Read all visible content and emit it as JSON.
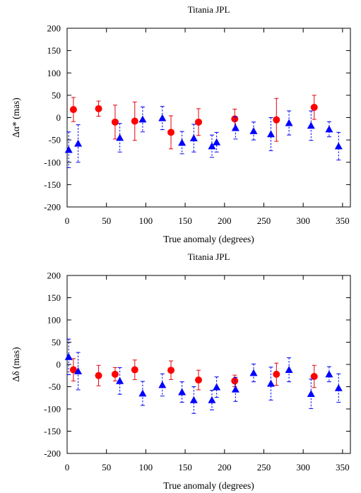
{
  "colors": {
    "red_series": "#e8000b",
    "red_marker": "#ff0000",
    "blue_series": "#0000ee",
    "blue_marker": "#0000ff",
    "axis": "#000000"
  },
  "chart_data": [
    {
      "type": "scatter",
      "title": "Titania JPL",
      "xlabel": "True anomaly (degrees)",
      "ylabel": "Δα* (mas)",
      "xlim": [
        0,
        360
      ],
      "ylim": [
        -200,
        200
      ],
      "xticks": [
        "0",
        "50",
        "100",
        "150",
        "200",
        "250",
        "300",
        "350"
      ],
      "yticks": [
        "200",
        "150",
        "100",
        "50",
        "0",
        "-50",
        "-100",
        "-150",
        "-200"
      ],
      "grid": false,
      "series": [
        {
          "marker": "circle",
          "errorbar": "solid",
          "color": "red",
          "points": [
            {
              "x": 8,
              "y": 18,
              "err": 27
            },
            {
              "x": 40,
              "y": 20,
              "err": 17
            },
            {
              "x": 61,
              "y": -10,
              "err": 38
            },
            {
              "x": 86,
              "y": -8,
              "err": 43
            },
            {
              "x": 132,
              "y": -33,
              "err": 37
            },
            {
              "x": 167,
              "y": -10,
              "err": 30
            },
            {
              "x": 213,
              "y": -3,
              "err": 22
            },
            {
              "x": 266,
              "y": -5,
              "err": 48
            },
            {
              "x": 314,
              "y": 23,
              "err": 27
            }
          ]
        },
        {
          "marker": "triangle",
          "errorbar": "dashed",
          "color": "blue",
          "points": [
            {
              "x": 2,
              "y": -72,
              "err": 40
            },
            {
              "x": 14,
              "y": -58,
              "err": 42
            },
            {
              "x": 67,
              "y": -45,
              "err": 32
            },
            {
              "x": 96,
              "y": -4,
              "err": 28
            },
            {
              "x": 121,
              "y": -1,
              "err": 26
            },
            {
              "x": 146,
              "y": -56,
              "err": 25
            },
            {
              "x": 161,
              "y": -46,
              "err": 31
            },
            {
              "x": 184,
              "y": -64,
              "err": 25
            },
            {
              "x": 190,
              "y": -55,
              "err": 22
            },
            {
              "x": 214,
              "y": -23,
              "err": 25
            },
            {
              "x": 237,
              "y": -30,
              "err": 20
            },
            {
              "x": 259,
              "y": -37,
              "err": 37
            },
            {
              "x": 282,
              "y": -12,
              "err": 27
            },
            {
              "x": 310,
              "y": -18,
              "err": 33
            },
            {
              "x": 333,
              "y": -26,
              "err": 17
            },
            {
              "x": 345,
              "y": -64,
              "err": 31
            }
          ]
        }
      ]
    },
    {
      "type": "scatter",
      "title": "Titania JPL",
      "xlabel": "True anomaly (degrees)",
      "ylabel": "Δδ (mas)",
      "xlim": [
        0,
        360
      ],
      "ylim": [
        -200,
        200
      ],
      "xticks": [
        "0",
        "50",
        "100",
        "150",
        "200",
        "250",
        "300",
        "350"
      ],
      "yticks": [
        "200",
        "150",
        "100",
        "50",
        "0",
        "-50",
        "-100",
        "-150",
        "-200"
      ],
      "grid": false,
      "series": [
        {
          "marker": "circle",
          "errorbar": "solid",
          "color": "red",
          "points": [
            {
              "x": 8,
              "y": -12,
              "err": 25
            },
            {
              "x": 40,
              "y": -25,
              "err": 23
            },
            {
              "x": 61,
              "y": -22,
              "err": 15
            },
            {
              "x": 86,
              "y": -12,
              "err": 22
            },
            {
              "x": 132,
              "y": -13,
              "err": 21
            },
            {
              "x": 167,
              "y": -35,
              "err": 22
            },
            {
              "x": 213,
              "y": -37,
              "err": 13
            },
            {
              "x": 266,
              "y": -22,
              "err": 25
            },
            {
              "x": 314,
              "y": -27,
              "err": 25
            }
          ]
        },
        {
          "marker": "triangle",
          "errorbar": "dashed",
          "color": "blue",
          "points": [
            {
              "x": 2,
              "y": 17,
              "err": 40
            },
            {
              "x": 14,
              "y": -15,
              "err": 42
            },
            {
              "x": 67,
              "y": -37,
              "err": 30
            },
            {
              "x": 96,
              "y": -65,
              "err": 27
            },
            {
              "x": 121,
              "y": -46,
              "err": 25
            },
            {
              "x": 146,
              "y": -62,
              "err": 23
            },
            {
              "x": 161,
              "y": -80,
              "err": 30
            },
            {
              "x": 184,
              "y": -80,
              "err": 22
            },
            {
              "x": 190,
              "y": -51,
              "err": 23
            },
            {
              "x": 214,
              "y": -56,
              "err": 27
            },
            {
              "x": 237,
              "y": -19,
              "err": 20
            },
            {
              "x": 259,
              "y": -43,
              "err": 37
            },
            {
              "x": 282,
              "y": -12,
              "err": 27
            },
            {
              "x": 310,
              "y": -66,
              "err": 33
            },
            {
              "x": 333,
              "y": -22,
              "err": 17
            },
            {
              "x": 345,
              "y": -53,
              "err": 32
            }
          ]
        }
      ]
    }
  ]
}
